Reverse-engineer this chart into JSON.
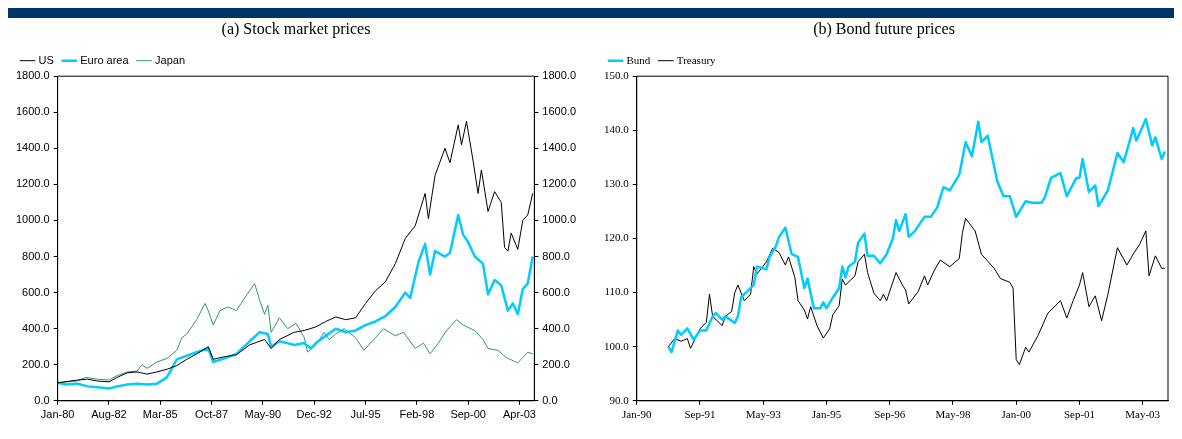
{
  "chart_data": [
    {
      "type": "line",
      "title": "(a) Stock market prices",
      "legend": "top left",
      "grid": false,
      "xlim": [
        "1980-01",
        "2004-01"
      ],
      "xticks": [
        {
          "value": "1980-01",
          "label": "Jan-80"
        },
        {
          "value": "1982-08",
          "label": "Aug-82"
        },
        {
          "value": "1985-03",
          "label": "Mar-85"
        },
        {
          "value": "1987-10",
          "label": "Oct-87"
        },
        {
          "value": "1990-05",
          "label": "May-90"
        },
        {
          "value": "1992-12",
          "label": "Dec-92"
        },
        {
          "value": "1995-07",
          "label": "Jul-95"
        },
        {
          "value": "1998-02",
          "label": "Feb-98"
        },
        {
          "value": "2000-09",
          "label": "Sep-00"
        },
        {
          "value": "2003-04",
          "label": "Apr-03"
        }
      ],
      "ylim": [
        0,
        1800
      ],
      "yticks": [
        {
          "value": 0,
          "label": "0.0"
        },
        {
          "value": 200,
          "label": "200.0"
        },
        {
          "value": 400,
          "label": "400.0"
        },
        {
          "value": 600,
          "label": "600.0"
        },
        {
          "value": 800,
          "label": "800.0"
        },
        {
          "value": 1000,
          "label": "1000.0"
        },
        {
          "value": 1200,
          "label": "1200.0"
        },
        {
          "value": 1400,
          "label": "1400.0"
        },
        {
          "value": 1600,
          "label": "1600.0"
        },
        {
          "value": 1800,
          "label": "1800.0"
        }
      ],
      "y2lim": [
        0,
        1800
      ],
      "y2ticks": [
        {
          "value": 0,
          "label": "0.0"
        },
        {
          "value": 200,
          "label": "200.0"
        },
        {
          "value": 400,
          "label": "400.0"
        },
        {
          "value": 600,
          "label": "600.0"
        },
        {
          "value": 800,
          "label": "800.0"
        },
        {
          "value": 1000,
          "label": "1000.0"
        },
        {
          "value": 1200,
          "label": "1200.0"
        },
        {
          "value": 1400,
          "label": "1400.0"
        },
        {
          "value": 1600,
          "label": "1600.0"
        },
        {
          "value": 1800,
          "label": "1800.0"
        }
      ],
      "series": [
        {
          "name": "US",
          "color": "#000000",
          "x": [
            "1980-01",
            "1981-01",
            "1981-07",
            "1982-01",
            "1982-08",
            "1983-01",
            "1983-07",
            "1984-01",
            "1984-07",
            "1985-01",
            "1985-07",
            "1986-01",
            "1986-07",
            "1987-01",
            "1987-08",
            "1987-11",
            "1988-06",
            "1989-01",
            "1989-09",
            "1990-06",
            "1990-10",
            "1991-03",
            "1991-12",
            "1992-06",
            "1993-01",
            "1993-07",
            "1994-01",
            "1994-07",
            "1995-01",
            "1995-07",
            "1996-01",
            "1996-07",
            "1997-01",
            "1997-07",
            "1998-01",
            "1998-07",
            "1998-09",
            "1999-01",
            "1999-07",
            "1999-10",
            "2000-03",
            "2000-05",
            "2000-08",
            "2000-12",
            "2001-03",
            "2001-05",
            "2001-09",
            "2002-01",
            "2002-05",
            "2002-07",
            "2002-09",
            "2002-11",
            "2003-03",
            "2003-06",
            "2003-09",
            "2003-12"
          ],
          "values": [
            100,
            115,
            120,
            110,
            105,
            130,
            155,
            160,
            148,
            160,
            175,
            195,
            230,
            260,
            300,
            230,
            245,
            255,
            310,
            340,
            290,
            340,
            380,
            390,
            410,
            440,
            465,
            450,
            460,
            540,
            610,
            660,
            760,
            900,
            970,
            1150,
            1010,
            1250,
            1400,
            1320,
            1530,
            1420,
            1550,
            1330,
            1150,
            1280,
            1050,
            1160,
            1100,
            850,
            830,
            930,
            840,
            1000,
            1030,
            1150
          ]
        },
        {
          "name": "Euro area",
          "color": "#00ccff",
          "x": [
            "1980-01",
            "1980-06",
            "1981-01",
            "1981-07",
            "1982-01",
            "1982-08",
            "1983-01",
            "1983-07",
            "1984-01",
            "1984-07",
            "1985-01",
            "1985-07",
            "1986-01",
            "1986-07",
            "1987-01",
            "1987-08",
            "1987-11",
            "1988-06",
            "1989-01",
            "1989-09",
            "1990-03",
            "1990-08",
            "1990-10",
            "1991-03",
            "1991-12",
            "1992-06",
            "1992-10",
            "1993-01",
            "1993-07",
            "1994-01",
            "1994-07",
            "1995-01",
            "1995-07",
            "1996-01",
            "1996-07",
            "1997-01",
            "1997-07",
            "1997-10",
            "1998-03",
            "1998-07",
            "1998-10",
            "1999-01",
            "1999-07",
            "1999-10",
            "2000-03",
            "2000-06",
            "2000-09",
            "2001-01",
            "2001-06",
            "2001-09",
            "2002-01",
            "2002-05",
            "2002-09",
            "2002-12",
            "2003-03",
            "2003-06",
            "2003-09",
            "2003-12"
          ],
          "values": [
            100,
            90,
            95,
            80,
            75,
            68,
            80,
            90,
            95,
            90,
            95,
            130,
            230,
            250,
            270,
            290,
            215,
            235,
            260,
            330,
            380,
            370,
            300,
            330,
            310,
            320,
            290,
            320,
            360,
            400,
            380,
            390,
            420,
            440,
            470,
            520,
            600,
            570,
            770,
            870,
            700,
            830,
            800,
            820,
            1030,
            920,
            880,
            800,
            760,
            590,
            670,
            640,
            500,
            540,
            480,
            620,
            650,
            800
          ]
        },
        {
          "name": "Japan",
          "color": "#339966",
          "x": [
            "1980-01",
            "1980-07",
            "1981-01",
            "1981-06",
            "1982-01",
            "1982-08",
            "1983-01",
            "1983-07",
            "1984-01",
            "1984-04",
            "1984-07",
            "1985-01",
            "1985-07",
            "1986-01",
            "1986-04",
            "1986-07",
            "1987-01",
            "1987-06",
            "1987-08",
            "1987-11",
            "1988-03",
            "1988-08",
            "1989-01",
            "1989-06",
            "1989-12",
            "1990-03",
            "1990-06",
            "1990-08",
            "1990-10",
            "1991-03",
            "1991-08",
            "1992-01",
            "1992-06",
            "1992-08",
            "1993-01",
            "1993-06",
            "1993-09",
            "1994-01",
            "1994-06",
            "1995-01",
            "1995-06",
            "1996-01",
            "1996-06",
            "1997-01",
            "1997-06",
            "1998-01",
            "1998-06",
            "1998-10",
            "1999-03",
            "1999-08",
            "2000-02",
            "2000-06",
            "2001-01",
            "2001-06",
            "2001-09",
            "2002-03",
            "2002-08",
            "2003-03",
            "2003-09",
            "2003-12"
          ],
          "values": [
            100,
            105,
            110,
            130,
            120,
            115,
            140,
            160,
            165,
            200,
            180,
            215,
            235,
            280,
            350,
            370,
            450,
            540,
            500,
            420,
            500,
            520,
            500,
            570,
            650,
            560,
            480,
            530,
            380,
            460,
            400,
            430,
            350,
            270,
            310,
            380,
            340,
            370,
            400,
            350,
            280,
            350,
            400,
            360,
            380,
            290,
            320,
            260,
            320,
            390,
            450,
            420,
            390,
            340,
            290,
            280,
            240,
            210,
            270,
            260
          ]
        }
      ]
    },
    {
      "type": "line",
      "title": "(b) Bond future prices",
      "legend": "top left",
      "grid": false,
      "xlim": [
        "1990-01",
        "2004-01"
      ],
      "xticks": [
        {
          "value": "1990-01",
          "label": "Jan-90"
        },
        {
          "value": "1991-09",
          "label": "Sep-91"
        },
        {
          "value": "1993-05",
          "label": "May-93"
        },
        {
          "value": "1995-01",
          "label": "Jan-95"
        },
        {
          "value": "1996-09",
          "label": "Sep-96"
        },
        {
          "value": "1998-05",
          "label": "May-98"
        },
        {
          "value": "2000-01",
          "label": "Jan-00"
        },
        {
          "value": "2001-09",
          "label": "Sep-01"
        },
        {
          "value": "2003-05",
          "label": "May-03"
        }
      ],
      "ylim": [
        90,
        150
      ],
      "yticks": [
        {
          "value": 90,
          "label": "90.0"
        },
        {
          "value": 100,
          "label": "100.0"
        },
        {
          "value": 110,
          "label": "110.0"
        },
        {
          "value": 120,
          "label": "120.0"
        },
        {
          "value": 130,
          "label": "130.0"
        },
        {
          "value": 140,
          "label": "140.0"
        },
        {
          "value": 150,
          "label": "150.0"
        }
      ],
      "series": [
        {
          "name": "Bund",
          "color": "#00ccff",
          "x": [
            "1990-11",
            "1990-12",
            "1991-02",
            "1991-03",
            "1991-05",
            "1991-07",
            "1991-09",
            "1991-11",
            "1992-01",
            "1992-02",
            "1992-04",
            "1992-05",
            "1992-08",
            "1992-09",
            "1992-10",
            "1992-11",
            "1993-02",
            "1993-03",
            "1993-06",
            "1993-07",
            "1993-09",
            "1993-10",
            "1993-12",
            "1994-02",
            "1994-04",
            "1994-06",
            "1994-07",
            "1994-09",
            "1994-11",
            "1994-12",
            "1995-01",
            "1995-03",
            "1995-05",
            "1995-06",
            "1995-07",
            "1995-08",
            "1995-10",
            "1995-11",
            "1996-01",
            "1996-02",
            "1996-04",
            "1996-06",
            "1996-08",
            "1996-10",
            "1996-11",
            "1996-12",
            "1997-02",
            "1997-03",
            "1997-05",
            "1997-08",
            "1997-10",
            "1997-12",
            "1998-02",
            "1998-04",
            "1998-07",
            "1998-09",
            "1998-11",
            "1999-01",
            "1999-02",
            "1999-04",
            "1999-07",
            "1999-09",
            "1999-11",
            "2000-01",
            "2000-04",
            "2000-06",
            "2000-09",
            "2000-10",
            "2000-12",
            "2001-03",
            "2001-05",
            "2001-08",
            "2001-09",
            "2001-10",
            "2001-12",
            "2002-02",
            "2002-03",
            "2002-06",
            "2002-09",
            "2002-11",
            "2003-02",
            "2003-03",
            "2003-06",
            "2003-08",
            "2003-09",
            "2003-11",
            "2003-12"
          ],
          "values": [
            100.0,
            99.0,
            103.0,
            102.2,
            103.4,
            101.3,
            103.0,
            103.0,
            105.6,
            106.2,
            105.0,
            105.6,
            104.4,
            105.6,
            109.1,
            109.7,
            111.4,
            114.8,
            114.3,
            116.6,
            118.6,
            120.3,
            122.0,
            117.1,
            116.6,
            110.8,
            112.6,
            107.1,
            107.1,
            108.2,
            107.1,
            109.1,
            110.8,
            114.8,
            112.8,
            114.8,
            115.7,
            119.2,
            120.9,
            116.8,
            116.8,
            115.4,
            117.1,
            120.0,
            123.4,
            121.4,
            124.5,
            120.3,
            121.4,
            124.0,
            124.0,
            125.7,
            129.5,
            128.9,
            131.8,
            137.8,
            135.2,
            141.6,
            137.8,
            139.0,
            130.6,
            127.8,
            127.8,
            124.0,
            126.9,
            126.6,
            126.6,
            127.5,
            131.2,
            132.1,
            127.8,
            131.2,
            131.2,
            134.7,
            128.6,
            129.8,
            126.0,
            128.9,
            135.8,
            134.1,
            140.4,
            138.1,
            142.1,
            137.2,
            138.7,
            134.7,
            136.1
          ]
        },
        {
          "name": "Treasury",
          "color": "#000000",
          "x": [
            "1990-11",
            "1991-01",
            "1991-03",
            "1991-05",
            "1991-06",
            "1991-09",
            "1991-11",
            "1991-12",
            "1992-01",
            "1992-04",
            "1992-05",
            "1992-07",
            "1992-08",
            "1992-09",
            "1992-11",
            "1993-01",
            "1993-02",
            "1993-03",
            "1993-06",
            "1993-08",
            "1993-10",
            "1993-12",
            "1994-01",
            "1994-03",
            "1994-04",
            "1994-06",
            "1994-07",
            "1994-08",
            "1994-10",
            "1994-12",
            "1995-02",
            "1995-03",
            "1995-05",
            "1995-06",
            "1995-07",
            "1995-10",
            "1995-11",
            "1996-01",
            "1996-02",
            "1996-04",
            "1996-06",
            "1996-07",
            "1996-08",
            "1996-11",
            "1997-01",
            "1997-02",
            "1997-03",
            "1997-06",
            "1997-08",
            "1997-09",
            "1997-11",
            "1998-01",
            "1998-04",
            "1998-07",
            "1998-08",
            "1998-09",
            "1998-12",
            "1999-02",
            "1999-06",
            "1999-08",
            "1999-11",
            "1999-12",
            "2000-01",
            "2000-02",
            "2000-04",
            "2000-05",
            "2000-08",
            "2000-11",
            "2001-03",
            "2001-05",
            "2001-07",
            "2001-09",
            "2001-10",
            "2001-12",
            "2002-02",
            "2002-04",
            "2002-06",
            "2002-09",
            "2002-12",
            "2003-02",
            "2003-04",
            "2003-06",
            "2003-07",
            "2003-09",
            "2003-11",
            "2003-12"
          ],
          "values": [
            100.0,
            101.5,
            101.0,
            101.5,
            99.7,
            103.3,
            104.5,
            109.7,
            105.6,
            103.9,
            105.6,
            106.5,
            110.0,
            111.4,
            108.5,
            109.7,
            114.8,
            113.4,
            115.7,
            118.2,
            117.4,
            115.1,
            116.6,
            112.8,
            108.5,
            106.8,
            105.1,
            107.4,
            103.9,
            101.6,
            103.3,
            105.9,
            107.6,
            112.5,
            111.4,
            113.1,
            115.7,
            117.1,
            113.7,
            109.9,
            108.5,
            109.7,
            108.5,
            113.7,
            111.4,
            110.5,
            107.9,
            110.2,
            113.1,
            111.4,
            114.0,
            116.0,
            114.8,
            116.3,
            121.1,
            123.7,
            121.4,
            117.1,
            114.5,
            112.6,
            111.9,
            110.8,
            97.6,
            96.7,
            99.9,
            99.0,
            102.2,
            106.2,
            108.5,
            105.3,
            108.5,
            111.4,
            113.7,
            107.4,
            109.4,
            104.8,
            109.7,
            118.3,
            115.1,
            117.1,
            118.9,
            121.4,
            113.1,
            116.8,
            114.5,
            114.5
          ]
        }
      ]
    }
  ]
}
